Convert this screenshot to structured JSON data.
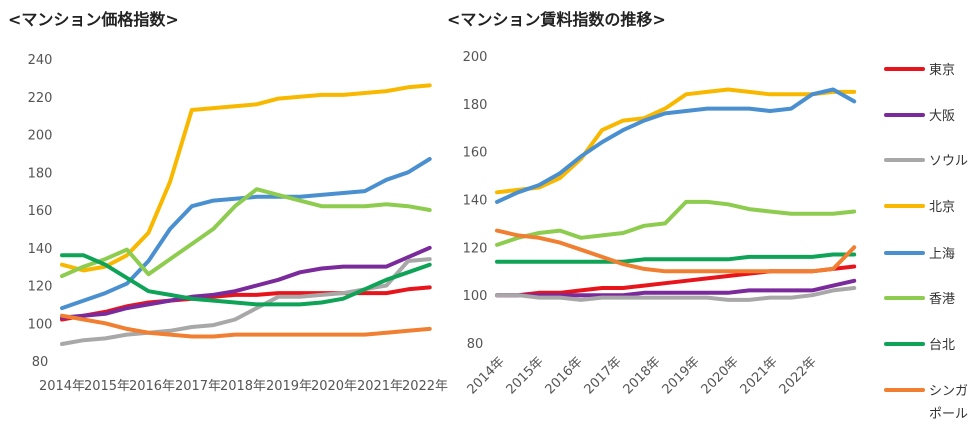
{
  "chart_data": [
    {
      "type": "line",
      "title": "<マンション価格指数>",
      "x_tick_labels": [
        "2014年",
        "2015年",
        "2016年",
        "2017年",
        "2018年",
        "2019年",
        "2020年",
        "2021年",
        "2022年"
      ],
      "ylim": [
        80,
        240
      ],
      "y_ticks": [
        80,
        100,
        120,
        140,
        160,
        180,
        200,
        220,
        240
      ],
      "grid": false,
      "x": [
        2014.0,
        2014.5,
        2015.0,
        2015.5,
        2016.0,
        2016.5,
        2017.0,
        2017.5,
        2018.0,
        2018.5,
        2019.0,
        2019.5,
        2020.0,
        2020.5,
        2021.0,
        2021.5,
        2022.0,
        2022.5
      ],
      "series": [
        {
          "name": "東京",
          "color": "#e8141c",
          "values": [
            102,
            104,
            106,
            109,
            111,
            112,
            113,
            114,
            115,
            115,
            116,
            116,
            116,
            116,
            116,
            116,
            118,
            119
          ]
        },
        {
          "name": "大阪",
          "color": "#7b2a9c",
          "values": [
            103,
            104,
            105,
            108,
            110,
            112,
            114,
            115,
            117,
            120,
            123,
            127,
            129,
            130,
            130,
            130,
            135,
            140
          ]
        },
        {
          "name": "ソウル",
          "color": "#a8a8a8",
          "values": [
            89,
            91,
            92,
            94,
            95,
            96,
            98,
            99,
            102,
            108,
            114,
            114,
            115,
            116,
            118,
            120,
            133,
            134
          ]
        },
        {
          "name": "北京",
          "color": "#f9b800",
          "values": [
            131,
            128,
            130,
            136,
            148,
            175,
            213,
            214,
            215,
            216,
            219,
            220,
            221,
            221,
            222,
            223,
            225,
            226
          ]
        },
        {
          "name": "上海",
          "color": "#4a90d0",
          "values": [
            108,
            112,
            116,
            121,
            133,
            150,
            162,
            165,
            166,
            167,
            167,
            167,
            168,
            169,
            170,
            176,
            180,
            187
          ]
        },
        {
          "name": "香港",
          "color": "#8dcc4f",
          "values": [
            125,
            130,
            134,
            139,
            126,
            134,
            142,
            150,
            162,
            171,
            168,
            165,
            162,
            162,
            162,
            163,
            162,
            160
          ]
        },
        {
          "name": "台北",
          "color": "#0ea356",
          "values": [
            136,
            136,
            131,
            124,
            117,
            115,
            113,
            112,
            111,
            110,
            110,
            110,
            111,
            113,
            118,
            123,
            127,
            131
          ]
        },
        {
          "name": "シンガポール",
          "color": "#f07f31",
          "values": [
            104,
            102,
            100,
            97,
            95,
            94,
            93,
            93,
            94,
            94,
            94,
            94,
            94,
            94,
            94,
            95,
            96,
            97
          ]
        }
      ]
    },
    {
      "type": "line",
      "title": "<マンション賃料指数の推移>",
      "x_tick_labels": [
        "2014年",
        "2015年",
        "2016年",
        "2017年",
        "2018年",
        "2019年",
        "2020年",
        "2021年",
        "2022年"
      ],
      "ylim": [
        80,
        200
      ],
      "y_ticks": [
        80,
        100,
        120,
        140,
        160,
        180,
        200
      ],
      "grid": false,
      "x": [
        2014.0,
        2014.5,
        2015.0,
        2015.5,
        2016.0,
        2016.5,
        2017.0,
        2017.5,
        2018.0,
        2018.5,
        2019.0,
        2019.5,
        2020.0,
        2020.5,
        2021.0,
        2021.5,
        2022.0,
        2022.5
      ],
      "series": [
        {
          "name": "東京",
          "color": "#e8141c",
          "values": [
            100,
            100,
            101,
            101,
            102,
            103,
            103,
            104,
            105,
            106,
            107,
            108,
            109,
            110,
            110,
            110,
            111,
            112
          ]
        },
        {
          "name": "大阪",
          "color": "#7b2a9c",
          "values": [
            100,
            100,
            100,
            100,
            100,
            100,
            100,
            101,
            101,
            101,
            101,
            101,
            102,
            102,
            102,
            102,
            104,
            106
          ]
        },
        {
          "name": "ソウル",
          "color": "#a8a8a8",
          "values": [
            100,
            100,
            99,
            99,
            98,
            99,
            99,
            99,
            99,
            99,
            99,
            98,
            98,
            99,
            99,
            100,
            102,
            103
          ]
        },
        {
          "name": "北京",
          "color": "#f9b800",
          "values": [
            143,
            144,
            145,
            149,
            157,
            169,
            173,
            174,
            178,
            184,
            185,
            186,
            185,
            184,
            184,
            184,
            185,
            185
          ]
        },
        {
          "name": "上海",
          "color": "#4a90d0",
          "values": [
            139,
            143,
            146,
            151,
            158,
            164,
            169,
            173,
            176,
            177,
            178,
            178,
            178,
            177,
            178,
            184,
            186,
            181
          ]
        },
        {
          "name": "香港",
          "color": "#8dcc4f",
          "values": [
            121,
            124,
            126,
            127,
            124,
            125,
            126,
            129,
            130,
            139,
            139,
            138,
            136,
            135,
            134,
            134,
            134,
            135
          ]
        },
        {
          "name": "台北",
          "color": "#0ea356",
          "values": [
            114,
            114,
            114,
            114,
            114,
            114,
            114,
            115,
            115,
            115,
            115,
            115,
            116,
            116,
            116,
            116,
            117,
            117
          ]
        },
        {
          "name": "シンガポール",
          "color": "#f07f31",
          "values": [
            127,
            125,
            124,
            122,
            119,
            116,
            113,
            111,
            110,
            110,
            110,
            110,
            110,
            110,
            110,
            110,
            111,
            120
          ]
        }
      ]
    }
  ],
  "legend": [
    {
      "label": "東京",
      "color": "#e8141c"
    },
    {
      "label": "大阪",
      "color": "#7b2a9c"
    },
    {
      "label": "ソウル",
      "color": "#a8a8a8"
    },
    {
      "label": "北京",
      "color": "#f9b800"
    },
    {
      "label": "上海",
      "color": "#4a90d0"
    },
    {
      "label": "香港",
      "color": "#8dcc4f"
    },
    {
      "label": "台北",
      "color": "#0ea356"
    },
    {
      "label": "シンガ",
      "label_line2": "ポール",
      "color": "#f07f31"
    }
  ]
}
